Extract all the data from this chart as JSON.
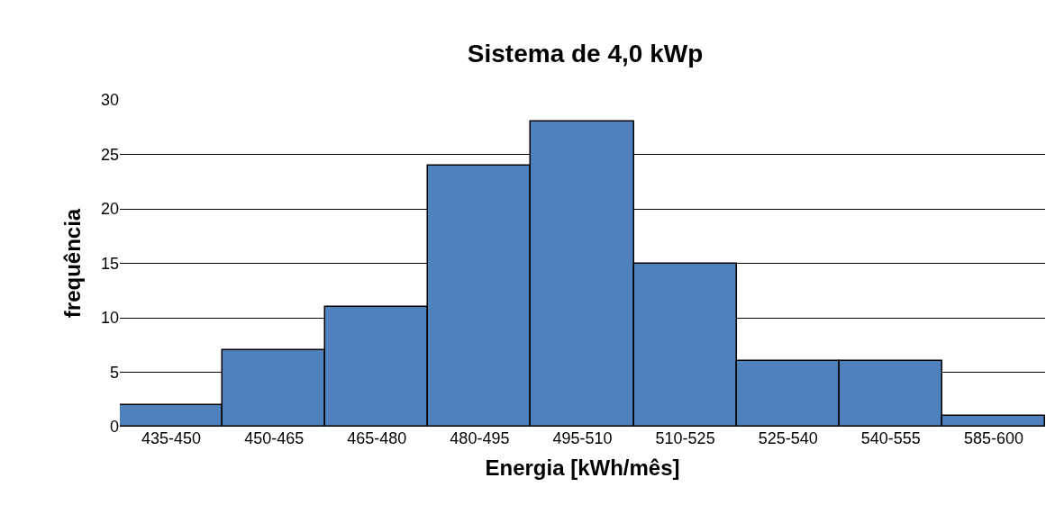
{
  "chart_data": {
    "type": "bar",
    "title": "Sistema de 4,0 kWp",
    "xlabel": "Energia [kWh/mês]",
    "ylabel": "frequência",
    "categories": [
      "435-450",
      "450-465",
      "465-480",
      "480-495",
      "495-510",
      "510-525",
      "525-540",
      "540-555",
      "585-600"
    ],
    "values": [
      2,
      7,
      11,
      24,
      28,
      15,
      6,
      6,
      1
    ],
    "color": "#4f81bd",
    "ylim": [
      0,
      30
    ],
    "yticks": [
      0,
      5,
      10,
      15,
      20,
      25,
      30
    ],
    "grid": "y"
  }
}
